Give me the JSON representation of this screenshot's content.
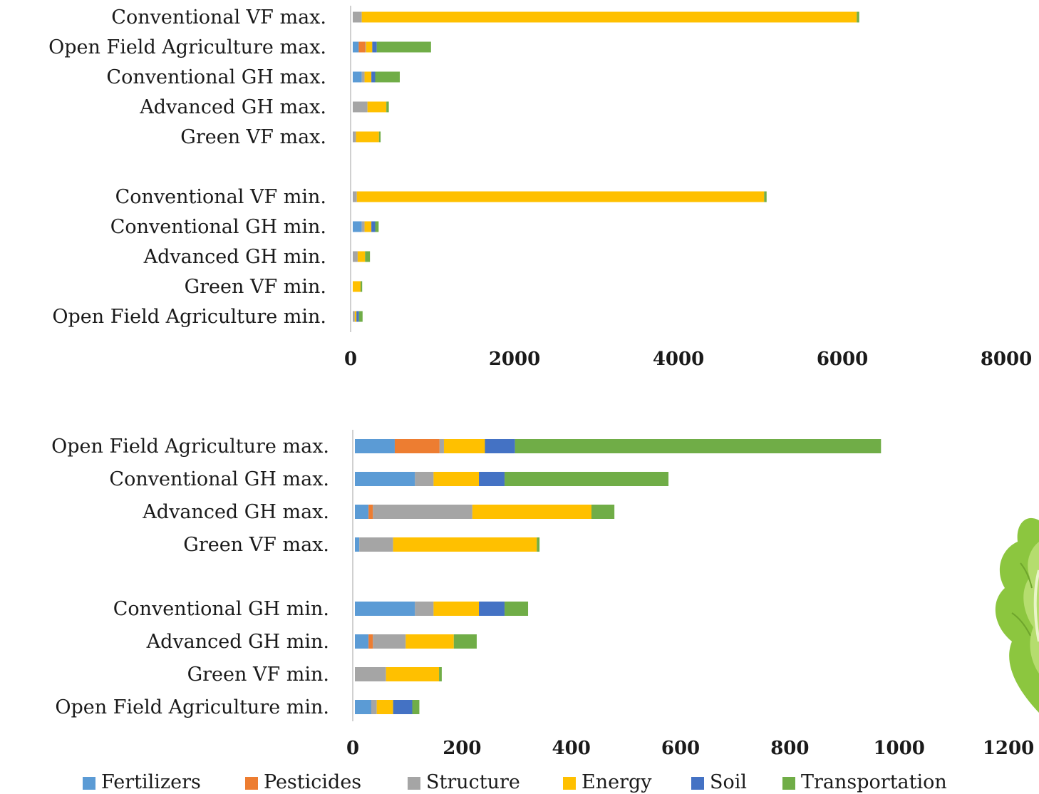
{
  "colors": {
    "Fertilizers": "#5B9BD5",
    "Pesticides": "#ED7D31",
    "Structure": "#A5A5A5",
    "Energy": "#FFC000",
    "Soil": "#4472C4",
    "Transportation": "#70AD47"
  },
  "legend": [
    "Fertilizers",
    "Pesticides",
    "Structure",
    "Energy",
    "Soil",
    "Transportation"
  ],
  "chart_data": [
    {
      "type": "bar",
      "orientation": "horizontal",
      "stacked": true,
      "title": "",
      "xlabel": "",
      "ylabel": "",
      "xlim": [
        0,
        8000
      ],
      "xticks": [
        "0",
        "2000",
        "4000",
        "6000",
        "8000"
      ],
      "groups": [
        5,
        5
      ],
      "categories": [
        "Conventional VF max.",
        "Open Field Agriculture max.",
        "Conventional GH max.",
        "Advanced GH max.",
        "Green VF max.",
        "Conventional VF min.",
        "Conventional GH min.",
        "Advanced GH min.",
        "Green VF min.",
        "Open Field Agriculture min."
      ],
      "series": [
        {
          "name": "Fertilizers",
          "values": [
            0,
            73,
            110,
            0,
            0,
            0,
            110,
            0,
            0,
            0
          ]
        },
        {
          "name": "Pesticides",
          "values": [
            0,
            82,
            0,
            0,
            0,
            0,
            0,
            0,
            0,
            0
          ]
        },
        {
          "name": "Structure",
          "values": [
            110,
            8,
            34,
            180,
            40,
            50,
            34,
            60,
            0,
            25
          ]
        },
        {
          "name": "Energy",
          "values": [
            6040,
            75,
            83,
            230,
            280,
            4970,
            83,
            90,
            95,
            20
          ]
        },
        {
          "name": "Soil",
          "values": [
            0,
            55,
            47,
            0,
            0,
            0,
            47,
            0,
            0,
            30
          ]
        },
        {
          "name": "Transportation",
          "values": [
            30,
            662,
            300,
            30,
            20,
            30,
            42,
            60,
            20,
            45
          ]
        }
      ]
    },
    {
      "type": "bar",
      "orientation": "horizontal",
      "stacked": true,
      "title": "",
      "xlabel": "",
      "ylabel": "",
      "xlim": [
        0,
        1200
      ],
      "xticks": [
        "0",
        "200",
        "400",
        "600",
        "800",
        "1000",
        "1200"
      ],
      "groups": [
        4,
        4
      ],
      "categories": [
        "Open Field Agriculture max.",
        "Conventional GH max.",
        "Advanced GH max.",
        "Green VF max.",
        "Conventional GH min.",
        "Advanced GH min.",
        "Green VF min.",
        "Open Field Agriculture min."
      ],
      "series": [
        {
          "name": "Fertilizers",
          "values": [
            73,
            110,
            25,
            8,
            110,
            25,
            0,
            30
          ]
        },
        {
          "name": "Pesticides",
          "values": [
            82,
            0,
            8,
            0,
            0,
            8,
            0,
            0
          ]
        },
        {
          "name": "Structure",
          "values": [
            8,
            34,
            182,
            62,
            34,
            60,
            57,
            10
          ]
        },
        {
          "name": "Energy",
          "values": [
            75,
            83,
            218,
            263,
            83,
            88,
            97,
            30
          ]
        },
        {
          "name": "Soil",
          "values": [
            55,
            47,
            0,
            0,
            47,
            0,
            0,
            35
          ]
        },
        {
          "name": "Transportation",
          "values": [
            670,
            300,
            42,
            5,
            43,
            42,
            5,
            13
          ]
        }
      ]
    }
  ]
}
